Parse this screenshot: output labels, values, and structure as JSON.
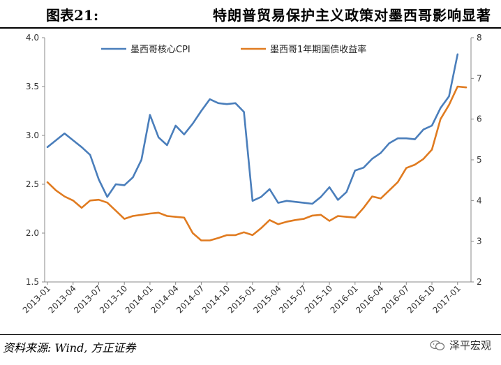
{
  "header": {
    "figure_no": "图表21:",
    "title": "特朗普贸易保护主义政策对墨西哥影响显著"
  },
  "footer": {
    "source": "资料来源: Wind, 方正证券",
    "watermark": "泽平宏观"
  },
  "chart_data": {
    "type": "line",
    "legend_position": "top",
    "grid": false,
    "x_tick_labels": [
      "2013-01",
      "2013-04",
      "2013-07",
      "2013-10",
      "2014-01",
      "2014-04",
      "2014-07",
      "2014-10",
      "2015-01",
      "2015-04",
      "2015-07",
      "2015-10",
      "2016-01",
      "2016-04",
      "2016-07",
      "2016-10",
      "2017-01"
    ],
    "y_left": {
      "ylim": [
        1.5,
        4.0
      ],
      "ticks": [
        "1.5",
        "2.0",
        "2.5",
        "3.0",
        "3.5",
        "4.0"
      ]
    },
    "y_right": {
      "ylim": [
        2,
        8
      ],
      "ticks": [
        "2",
        "3",
        "4",
        "5",
        "6",
        "7",
        "8"
      ]
    },
    "series": [
      {
        "name": "墨西哥核心CPI",
        "axis": "left",
        "color": "#4a7ebb",
        "points": [
          [
            0,
            2.88
          ],
          [
            1,
            2.95
          ],
          [
            2,
            3.02
          ],
          [
            3,
            2.95
          ],
          [
            4,
            2.88
          ],
          [
            5,
            2.8
          ],
          [
            6,
            2.55
          ],
          [
            7,
            2.37
          ],
          [
            8,
            2.5
          ],
          [
            9,
            2.49
          ],
          [
            10,
            2.57
          ],
          [
            11,
            2.75
          ],
          [
            12,
            3.21
          ],
          [
            13,
            2.98
          ],
          [
            14,
            2.9
          ],
          [
            15,
            3.1
          ],
          [
            16,
            3.01
          ],
          [
            17,
            3.12
          ],
          [
            18,
            3.25
          ],
          [
            19,
            3.37
          ],
          [
            20,
            3.33
          ],
          [
            21,
            3.32
          ],
          [
            22,
            3.33
          ],
          [
            23,
            3.24
          ],
          [
            24,
            2.33
          ],
          [
            25,
            2.37
          ],
          [
            26,
            2.45
          ],
          [
            27,
            2.31
          ],
          [
            28,
            2.33
          ],
          [
            29,
            2.32
          ],
          [
            30,
            2.31
          ],
          [
            31,
            2.3
          ],
          [
            32,
            2.37
          ],
          [
            33,
            2.47
          ],
          [
            34,
            2.34
          ],
          [
            35,
            2.42
          ],
          [
            36,
            2.64
          ],
          [
            37,
            2.67
          ],
          [
            38,
            2.76
          ],
          [
            39,
            2.82
          ],
          [
            40,
            2.92
          ],
          [
            41,
            2.97
          ],
          [
            42,
            2.97
          ],
          [
            43,
            2.96
          ],
          [
            44,
            3.06
          ],
          [
            45,
            3.1
          ],
          [
            46,
            3.28
          ],
          [
            47,
            3.4
          ],
          [
            48,
            3.83
          ]
        ]
      },
      {
        "name": "墨西哥1年期国债收益率",
        "axis": "right",
        "color": "#e07b20",
        "points": [
          [
            0,
            4.45
          ],
          [
            1,
            4.25
          ],
          [
            2,
            4.1
          ],
          [
            3,
            4.0
          ],
          [
            4,
            3.82
          ],
          [
            5,
            4.0
          ],
          [
            6,
            4.02
          ],
          [
            7,
            3.95
          ],
          [
            8,
            3.75
          ],
          [
            9,
            3.55
          ],
          [
            10,
            3.62
          ],
          [
            11,
            3.65
          ],
          [
            12,
            3.68
          ],
          [
            13,
            3.7
          ],
          [
            14,
            3.62
          ],
          [
            15,
            3.6
          ],
          [
            16,
            3.58
          ],
          [
            17,
            3.2
          ],
          [
            18,
            3.02
          ],
          [
            19,
            3.02
          ],
          [
            20,
            3.08
          ],
          [
            21,
            3.15
          ],
          [
            22,
            3.15
          ],
          [
            23,
            3.22
          ],
          [
            24,
            3.15
          ],
          [
            25,
            3.32
          ],
          [
            26,
            3.52
          ],
          [
            27,
            3.42
          ],
          [
            28,
            3.48
          ],
          [
            29,
            3.52
          ],
          [
            30,
            3.55
          ],
          [
            31,
            3.63
          ],
          [
            32,
            3.65
          ],
          [
            33,
            3.5
          ],
          [
            34,
            3.62
          ],
          [
            35,
            3.6
          ],
          [
            36,
            3.58
          ],
          [
            37,
            3.82
          ],
          [
            38,
            4.1
          ],
          [
            39,
            4.05
          ],
          [
            40,
            4.25
          ],
          [
            41,
            4.45
          ],
          [
            42,
            4.8
          ],
          [
            43,
            4.88
          ],
          [
            44,
            5.02
          ],
          [
            45,
            5.25
          ],
          [
            46,
            6.0
          ],
          [
            47,
            6.35
          ],
          [
            48,
            6.8
          ],
          [
            49,
            6.78
          ]
        ]
      }
    ]
  }
}
